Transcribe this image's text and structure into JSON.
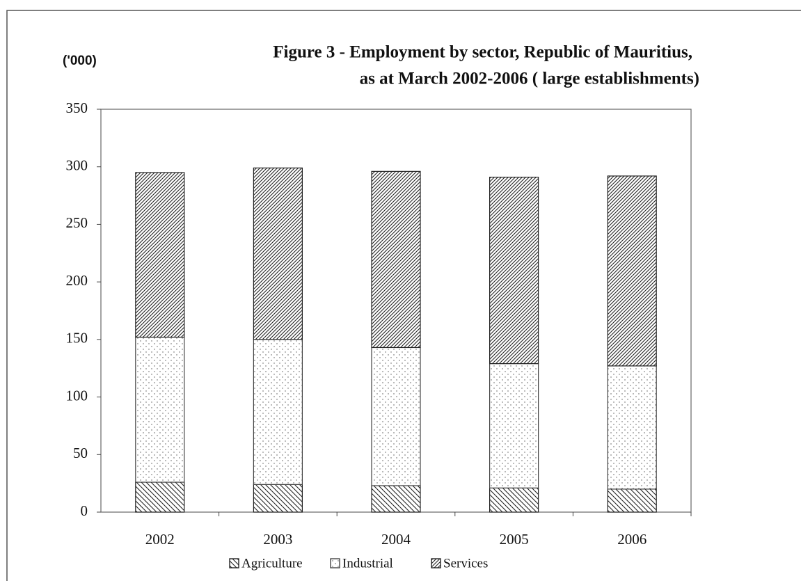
{
  "chart_data": {
    "type": "stacked_bar",
    "title": [
      "Figure 3 - Employment by sector, Republic of Mauritius,",
      "as at March 2002-2006 ( large establishments)"
    ],
    "y_unit_label": "('000)",
    "categories": [
      "2002",
      "2003",
      "2004",
      "2005",
      "2006"
    ],
    "series": [
      {
        "name": "Agriculture",
        "color": "#222222",
        "pattern": "hatch-back",
        "values": [
          26,
          24,
          23,
          21,
          20
        ]
      },
      {
        "name": "Industrial",
        "color": "#444444",
        "pattern": "dots",
        "values": [
          126,
          126,
          120,
          108,
          107
        ]
      },
      {
        "name": "Services",
        "color": "#222222",
        "pattern": "hatch-forward",
        "values": [
          143,
          149,
          153,
          162,
          165
        ]
      }
    ],
    "ylim": [
      0,
      350
    ],
    "yticks": [
      0,
      50,
      100,
      150,
      200,
      250,
      300,
      350
    ],
    "grid": false,
    "legend": "bottom"
  }
}
